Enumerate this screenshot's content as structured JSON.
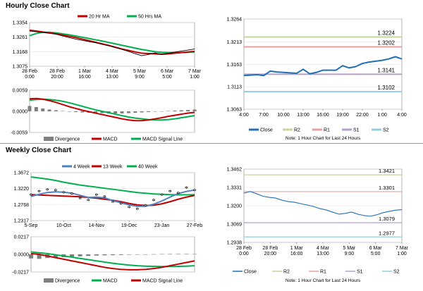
{
  "sections": {
    "hourly_title": "Hourly Close Chart",
    "weekly_title": "Weekly Close Chart"
  },
  "colors": {
    "ma20": "#c00000",
    "ma50": "#00b050",
    "price": "#000000",
    "divergence": "#7f7f7f",
    "macd": "#c00000",
    "signal": "#00b050",
    "close_line": "#1f6fb5",
    "r2": "#c3d69b",
    "r1": "#e6a0a0",
    "s1": "#b3a2c7",
    "s2": "#93cddd",
    "w4": "#4f81bd",
    "w13": "#c00000",
    "w40": "#00b050"
  },
  "chart_data": [
    {
      "id": "hourly_price",
      "type": "line",
      "legend": [
        "20 Hr MA",
        "50 Hrs MA"
      ],
      "y_ticks": [
        "1.3354",
        "1.3261",
        "1.3168",
        "1.3075"
      ],
      "ylim": [
        1.3075,
        1.3354
      ],
      "x_ticks": [
        "28 Feb\n0:00",
        "28 Feb\n20:00",
        "1 Mar\n16:00",
        "4 Mar\n13:00",
        "5 Mar\n9:00",
        "6 Mar\n5:00",
        "7 Mar\n1:00"
      ],
      "series": [
        {
          "name": "Close",
          "values": [
            1.33,
            1.3295,
            1.329,
            1.3285,
            1.328,
            1.3268,
            1.3258,
            1.3248,
            1.324,
            1.3232,
            1.3225,
            1.3215,
            1.3205,
            1.3195,
            1.3182,
            1.317,
            1.3155,
            1.3142,
            1.315,
            1.316,
            1.315,
            1.3158,
            1.3166,
            1.3172,
            1.3178,
            1.3185
          ]
        },
        {
          "name": "20 Hr MA",
          "values": [
            1.3305,
            1.33,
            1.3294,
            1.3288,
            1.3282,
            1.3274,
            1.3266,
            1.3258,
            1.3248,
            1.3238,
            1.3228,
            1.3218,
            1.3208,
            1.3196,
            1.3185,
            1.3176,
            1.3166,
            1.3158,
            1.3156,
            1.3154,
            1.3152,
            1.3154,
            1.3158,
            1.3162,
            1.3166,
            1.317
          ]
        },
        {
          "name": "50 Hrs MA",
          "values": [
            1.327,
            1.3284,
            1.3292,
            1.3292,
            1.3288,
            1.3282,
            1.3276,
            1.3268,
            1.326,
            1.3252,
            1.3244,
            1.3236,
            1.3227,
            1.3218,
            1.3209,
            1.32,
            1.3191,
            1.3182,
            1.3175,
            1.3168,
            1.3164,
            1.3162,
            1.3162,
            1.3163,
            1.3164,
            1.3166
          ]
        }
      ]
    },
    {
      "id": "hourly_macd",
      "type": "line",
      "legend": [
        "Divergence",
        "MACD",
        "MACD Signal Line"
      ],
      "y_ticks": [
        "0.0059",
        "0.0000",
        "-0.0059"
      ],
      "ylim": [
        -0.0059,
        0.0059
      ],
      "series": [
        {
          "name": "Divergence",
          "values": [
            0.0015,
            0.0012,
            0.0008,
            0.0005,
            0.0003,
            0.0001,
            -0.0001,
            -0.0002,
            -0.0003,
            -0.0004,
            -0.0005,
            -0.0005,
            -0.0006,
            -0.0006,
            -0.0006,
            -0.0005,
            -0.0004,
            -0.0003,
            -0.0002,
            -0.0001,
            0.0,
            0.0001,
            0.0002,
            0.0003,
            0.0004,
            0.0005
          ]
        },
        {
          "name": "MACD",
          "values": [
            0.0035,
            0.0036,
            0.0034,
            0.003,
            0.0025,
            0.0019,
            0.0013,
            0.0008,
            0.0003,
            -0.0001,
            -0.0005,
            -0.0009,
            -0.0013,
            -0.0017,
            -0.0021,
            -0.0024,
            -0.0026,
            -0.0026,
            -0.0024,
            -0.0021,
            -0.0018,
            -0.0014,
            -0.0011,
            -0.0008,
            -0.0005,
            -0.0003
          ]
        },
        {
          "name": "MACD Signal Line",
          "values": [
            0.0031,
            0.0033,
            0.0034,
            0.0033,
            0.0031,
            0.0028,
            0.0024,
            0.0019,
            0.0014,
            0.0009,
            0.0004,
            0.0,
            -0.0004,
            -0.0008,
            -0.0012,
            -0.0016,
            -0.0019,
            -0.0021,
            -0.0023,
            -0.0024,
            -0.0024,
            -0.0023,
            -0.0021,
            -0.0018,
            -0.0015,
            -0.0012
          ]
        }
      ]
    },
    {
      "id": "hourly_pivots",
      "type": "line",
      "y_ticks": [
        "1.3264",
        "1.3213",
        "1.3163",
        "1.3113",
        "1.3063"
      ],
      "ylim": [
        1.3063,
        1.3264
      ],
      "x_ticks": [
        "4:00",
        "7:00",
        "10:00",
        "13:00",
        "16:00",
        "19:00",
        "22:00",
        "1:00",
        "4:00"
      ],
      "levels": [
        {
          "name": "R2",
          "value": 1.3224,
          "label": "1.3224"
        },
        {
          "name": "R1",
          "value": 1.3202,
          "label": "1.3202"
        },
        {
          "name": "S1",
          "value": 1.3141,
          "label": "1.3141"
        },
        {
          "name": "S2",
          "value": 1.3102,
          "label": "1.3102"
        }
      ],
      "series": [
        {
          "name": "Close",
          "values": [
            1.3138,
            1.3139,
            1.314,
            1.3138,
            1.3148,
            1.3146,
            1.3145,
            1.3144,
            1.3143,
            1.3152,
            1.3142,
            1.3145,
            1.315,
            1.315,
            1.315,
            1.316,
            1.3155,
            1.3158,
            1.3165,
            1.3168,
            1.317,
            1.3172,
            1.3175,
            1.318,
            1.3175
          ]
        }
      ],
      "legend": [
        "Close",
        "R2",
        "R1",
        "S1",
        "S2"
      ],
      "note": "Note: 1 Hour Chart for Last 24 Hours"
    },
    {
      "id": "weekly_price",
      "type": "line",
      "legend": [
        "4 Week",
        "13 Week",
        "40 Week"
      ],
      "y_ticks": [
        "1.3672",
        "1.3220",
        "1.2768",
        "1.2317"
      ],
      "ylim": [
        1.2317,
        1.3672
      ],
      "x_ticks": [
        "5-Sep",
        "10-Oct",
        "14-Nov",
        "19-Dec",
        "23-Jan",
        "27-Feb"
      ],
      "series": [
        {
          "name": "Close",
          "values": [
            1.305,
            1.315,
            1.32,
            1.318,
            1.312,
            1.308,
            1.295,
            1.29,
            1.305,
            1.3,
            1.285,
            1.28,
            1.27,
            1.265,
            1.275,
            1.29,
            1.305,
            1.315,
            1.31,
            1.325,
            1.318
          ]
        },
        {
          "name": "4 Week",
          "values": [
            1.3,
            1.306,
            1.311,
            1.313,
            1.312,
            1.309,
            1.303,
            1.297,
            1.298,
            1.296,
            1.288,
            1.282,
            1.276,
            1.272,
            1.272,
            1.278,
            1.287,
            1.298,
            1.308,
            1.314,
            1.318
          ]
        },
        {
          "name": "13 Week",
          "values": [
            1.305,
            1.304,
            1.303,
            1.302,
            1.301,
            1.3,
            1.299,
            1.297,
            1.295,
            1.292,
            1.289,
            1.285,
            1.28,
            1.276,
            1.274,
            1.275,
            1.279,
            1.285,
            1.292,
            1.298,
            1.303
          ]
        },
        {
          "name": "40 Week",
          "values": [
            1.355,
            1.352,
            1.349,
            1.345,
            1.34,
            1.336,
            1.332,
            1.329,
            1.326,
            1.323,
            1.32,
            1.317,
            1.314,
            1.311,
            1.309,
            1.307,
            1.306,
            1.305,
            1.3045,
            1.3045,
            1.305
          ]
        }
      ]
    },
    {
      "id": "weekly_macd",
      "type": "line",
      "legend": [
        "Divergence",
        "MACD",
        "MACD Signal Line"
      ],
      "y_ticks": [
        "0.0217",
        "0.0000",
        "-0.0217"
      ],
      "ylim": [
        -0.0217,
        0.0217
      ],
      "series": [
        {
          "name": "Divergence",
          "values": [
            -0.005,
            -0.0055,
            -0.0045,
            -0.004,
            -0.0035,
            -0.003,
            -0.0025,
            -0.002,
            -0.0015,
            -0.0012,
            -0.001,
            -0.0008,
            -0.0005,
            -0.0002,
            0.0,
            0.0002,
            0.0004,
            0.0005,
            0.0005,
            0.0005,
            0.0004
          ]
        },
        {
          "name": "MACD",
          "values": [
            0.001,
            0.0,
            -0.002,
            -0.004,
            -0.006,
            -0.008,
            -0.01,
            -0.012,
            -0.014,
            -0.016,
            -0.0175,
            -0.0185,
            -0.019,
            -0.019,
            -0.0185,
            -0.0175,
            -0.016,
            -0.014,
            -0.012,
            -0.01,
            -0.008
          ]
        },
        {
          "name": "MACD Signal Line",
          "values": [
            0.003,
            0.002,
            0.001,
            -0.0005,
            -0.002,
            -0.0035,
            -0.005,
            -0.0065,
            -0.008,
            -0.0095,
            -0.011,
            -0.0122,
            -0.0132,
            -0.014,
            -0.0145,
            -0.0148,
            -0.015,
            -0.015,
            -0.0148,
            -0.0145,
            -0.014
          ]
        }
      ]
    },
    {
      "id": "weekly_pivots",
      "type": "line",
      "y_ticks": [
        "1.3462",
        "1.3331",
        "1.3200",
        "1.3069",
        "1.2938"
      ],
      "ylim": [
        1.2938,
        1.3462
      ],
      "x_ticks": [
        "28 Feb\n0:00",
        "28 Feb\n20:00",
        "1 Mar\n16:00",
        "4 Mar\n13:00",
        "5 Mar\n9:00",
        "6 Mar\n5:00",
        "7 Mar\n1:00"
      ],
      "levels": [
        {
          "name": "R2",
          "value": 1.3421,
          "label": "1.3421"
        },
        {
          "name": "R1",
          "value": 1.3301,
          "label": "1.3301"
        },
        {
          "name": "S1",
          "value": 1.3079,
          "label": "1.3079"
        },
        {
          "name": "S2",
          "value": 1.2977,
          "label": "1.2977"
        }
      ],
      "series": [
        {
          "name": "Close",
          "values": [
            1.329,
            1.3302,
            1.3286,
            1.3268,
            1.326,
            1.3255,
            1.324,
            1.323,
            1.3225,
            1.3215,
            1.3205,
            1.3195,
            1.318,
            1.317,
            1.3155,
            1.314,
            1.3145,
            1.3155,
            1.314,
            1.313,
            1.3125,
            1.3135,
            1.315,
            1.316,
            1.3168,
            1.3172
          ]
        }
      ],
      "legend": [
        "Close",
        "R2",
        "R1",
        "S1",
        "S2"
      ],
      "note": "Note: 1 Hour Chart for Last 24 Hours"
    }
  ]
}
